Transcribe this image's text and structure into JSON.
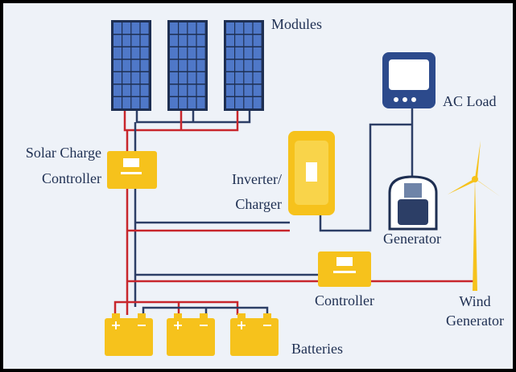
{
  "labels": {
    "modules": "Modules",
    "ac_load": "AC Load",
    "solar_charge_controller": [
      "Solar Charge",
      "Controller"
    ],
    "inverter_charger": [
      "Inverter/",
      "Charger"
    ],
    "generator": "Generator",
    "controller": "Controller",
    "wind_generator": [
      "Wind",
      "Generator"
    ],
    "batteries": "Batteries"
  }
}
